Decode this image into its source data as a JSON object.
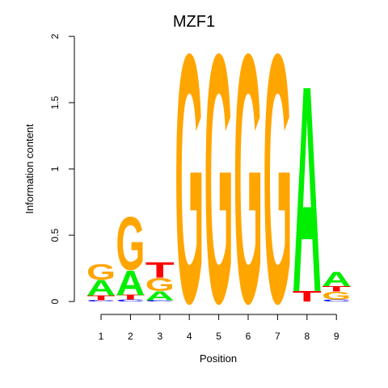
{
  "chart_data": {
    "type": "sequence-logo",
    "title": "MZF1",
    "xlabel": "Position",
    "ylabel": "Information content",
    "ylim": [
      0,
      2
    ],
    "yticks": [
      "0",
      "0.5",
      "1",
      "1.5",
      "2"
    ],
    "positions": [
      "1",
      "2",
      "3",
      "4",
      "5",
      "6",
      "7",
      "8",
      "9"
    ],
    "colors": {
      "A": "#00ee00",
      "C": "#0000ee",
      "G": "#ffa500",
      "T": "#ff0000"
    },
    "stacks": [
      [
        {
          "letter": "C",
          "h": 0.01
        },
        {
          "letter": "T",
          "h": 0.035
        },
        {
          "letter": "A",
          "h": 0.12
        },
        {
          "letter": "G",
          "h": 0.12
        }
      ],
      [
        {
          "letter": "C",
          "h": 0.015
        },
        {
          "letter": "T",
          "h": 0.035
        },
        {
          "letter": "A",
          "h": 0.19
        },
        {
          "letter": "G",
          "h": 0.41
        }
      ],
      [
        {
          "letter": "C",
          "h": 0.01
        },
        {
          "letter": "A",
          "h": 0.07
        },
        {
          "letter": "G",
          "h": 0.1
        },
        {
          "letter": "T",
          "h": 0.12
        }
      ],
      [
        {
          "letter": "G",
          "h": 1.93
        }
      ],
      [
        {
          "letter": "G",
          "h": 1.93
        }
      ],
      [
        {
          "letter": "G",
          "h": 1.93
        }
      ],
      [
        {
          "letter": "G",
          "h": 1.93
        }
      ],
      [
        {
          "letter": "T",
          "h": 0.08
        },
        {
          "letter": "A",
          "h": 1.6
        }
      ],
      [
        {
          "letter": "C",
          "h": 0.015
        },
        {
          "letter": "G",
          "h": 0.06
        },
        {
          "letter": "T",
          "h": 0.04
        },
        {
          "letter": "A",
          "h": 0.11
        }
      ]
    ]
  }
}
